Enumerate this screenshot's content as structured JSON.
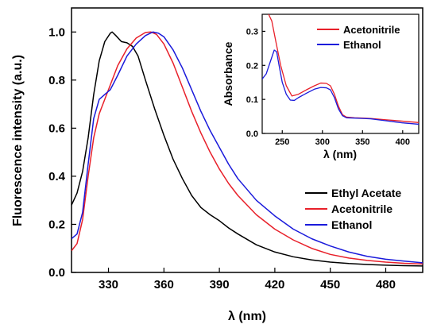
{
  "chart_data": [
    {
      "type": "line",
      "xlabel": "λ (nm)",
      "ylabel": "Fluorescence intensity (a.u.)",
      "xlim": [
        310,
        500
      ],
      "ylim": [
        0,
        1.1
      ],
      "xticks": [
        330,
        360,
        390,
        420,
        450,
        480
      ],
      "xtick_labels": [
        "330",
        "360",
        "390",
        "420",
        "450",
        "480"
      ],
      "yticks": [
        0.0,
        0.2,
        0.4,
        0.6,
        0.8,
        1.0
      ],
      "ytick_labels": [
        "0.0",
        "0.2",
        "0.4",
        "0.6",
        "0.8",
        "1.0"
      ],
      "legend_position": "bottom-right",
      "series": [
        {
          "name": "Ethyl Acetate",
          "color": "#000000",
          "x": [
            310,
            313,
            316,
            319,
            322,
            325,
            328,
            331,
            332,
            334,
            337,
            340,
            343,
            346,
            350,
            355,
            360,
            365,
            370,
            375,
            380,
            385,
            390,
            395,
            400,
            410,
            420,
            430,
            440,
            450,
            460,
            470,
            480,
            490,
            500
          ],
          "y": [
            0.28,
            0.33,
            0.42,
            0.56,
            0.74,
            0.88,
            0.96,
            0.995,
            1.0,
            0.985,
            0.96,
            0.955,
            0.94,
            0.9,
            0.8,
            0.68,
            0.57,
            0.47,
            0.39,
            0.32,
            0.27,
            0.24,
            0.215,
            0.185,
            0.16,
            0.115,
            0.085,
            0.065,
            0.052,
            0.043,
            0.037,
            0.033,
            0.03,
            0.028,
            0.027
          ]
        },
        {
          "name": "Acetonitrile",
          "color": "#e8202a",
          "x": [
            310,
            313,
            316,
            319,
            322,
            325,
            328,
            331,
            335,
            340,
            345,
            350,
            353,
            356,
            360,
            365,
            370,
            375,
            380,
            385,
            390,
            395,
            400,
            410,
            420,
            430,
            440,
            450,
            460,
            470,
            480,
            490,
            500
          ],
          "y": [
            0.09,
            0.12,
            0.22,
            0.4,
            0.56,
            0.66,
            0.72,
            0.78,
            0.86,
            0.93,
            0.975,
            0.998,
            1.0,
            0.99,
            0.95,
            0.87,
            0.77,
            0.67,
            0.58,
            0.5,
            0.43,
            0.37,
            0.32,
            0.24,
            0.18,
            0.135,
            0.1,
            0.075,
            0.06,
            0.05,
            0.043,
            0.038,
            0.035
          ]
        },
        {
          "name": "Ethanol",
          "color": "#1a1adb",
          "x": [
            310,
            313,
            316,
            319,
            322,
            325,
            328,
            331,
            335,
            340,
            345,
            350,
            354,
            357,
            360,
            365,
            370,
            375,
            380,
            385,
            390,
            395,
            400,
            410,
            420,
            430,
            440,
            450,
            460,
            470,
            480,
            490,
            500
          ],
          "y": [
            0.14,
            0.16,
            0.25,
            0.45,
            0.64,
            0.72,
            0.74,
            0.76,
            0.82,
            0.9,
            0.95,
            0.985,
            1.0,
            0.995,
            0.98,
            0.925,
            0.85,
            0.76,
            0.67,
            0.59,
            0.52,
            0.45,
            0.39,
            0.3,
            0.235,
            0.18,
            0.14,
            0.11,
            0.085,
            0.067,
            0.055,
            0.047,
            0.04
          ]
        }
      ]
    },
    {
      "type": "line",
      "xlabel": "λ (nm)",
      "ylabel": "Absorbance",
      "xlim": [
        225,
        420
      ],
      "ylim": [
        0,
        0.35
      ],
      "xticks": [
        250,
        300,
        350,
        400
      ],
      "xtick_labels": [
        "250",
        "300",
        "350",
        "400"
      ],
      "yticks": [
        0.0,
        0.1,
        0.2,
        0.3
      ],
      "ytick_labels": [
        "0.0",
        "0.1",
        "0.2",
        "0.3"
      ],
      "legend_position": "top-right",
      "series": [
        {
          "name": "Acetonitrile",
          "color": "#e8202a",
          "x": [
            233,
            237,
            242,
            248,
            255,
            262,
            270,
            280,
            290,
            298,
            305,
            310,
            315,
            320,
            325,
            330,
            340,
            350,
            360,
            370,
            380,
            390,
            400,
            410,
            420
          ],
          "y": [
            0.35,
            0.33,
            0.27,
            0.2,
            0.14,
            0.11,
            0.115,
            0.128,
            0.14,
            0.148,
            0.147,
            0.14,
            0.115,
            0.08,
            0.055,
            0.048,
            0.046,
            0.045,
            0.044,
            0.042,
            0.04,
            0.038,
            0.036,
            0.034,
            0.032
          ]
        },
        {
          "name": "Ethanol",
          "color": "#1a1adb",
          "x": [
            225,
            230,
            235,
            240,
            243,
            246,
            250,
            255,
            260,
            265,
            270,
            280,
            290,
            298,
            305,
            310,
            315,
            320,
            325,
            330,
            340,
            350,
            360,
            370,
            380,
            390,
            400,
            410,
            420
          ],
          "y": [
            0.16,
            0.175,
            0.21,
            0.245,
            0.24,
            0.2,
            0.15,
            0.115,
            0.098,
            0.097,
            0.105,
            0.118,
            0.13,
            0.135,
            0.134,
            0.128,
            0.105,
            0.072,
            0.052,
            0.046,
            0.045,
            0.044,
            0.043,
            0.04,
            0.037,
            0.034,
            0.031,
            0.029,
            0.027
          ]
        }
      ]
    }
  ]
}
